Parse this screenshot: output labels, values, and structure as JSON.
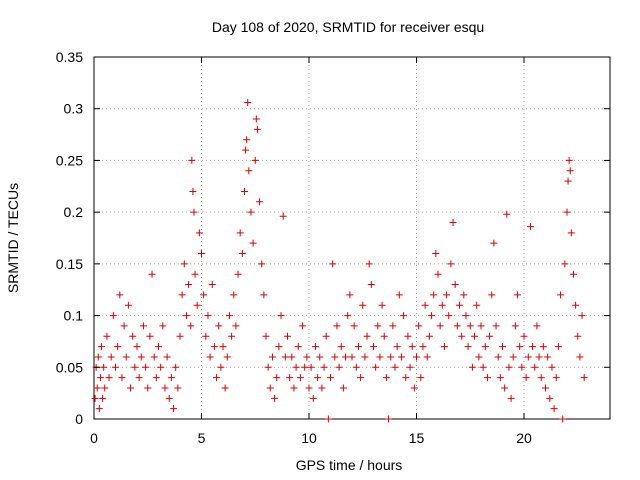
{
  "chart_data": {
    "type": "scatter",
    "title": "Day 108 of 2020, SRMTID for receiver esqu",
    "xlabel": "GPS time / hours",
    "ylabel": "SRMTID / TECUs",
    "xlim": [
      0,
      24
    ],
    "ylim": [
      0,
      0.35
    ],
    "xticks": [
      0,
      5,
      10,
      15,
      20
    ],
    "xtick_labels": [
      "0",
      "5",
      "10",
      "15",
      "20"
    ],
    "yticks": [
      0,
      0.05,
      0.1,
      0.15,
      0.2,
      0.25,
      0.3,
      0.35
    ],
    "ytick_labels": [
      "0",
      "0.05",
      "0.1",
      "0.15",
      "0.2",
      "0.25",
      "0.3",
      "0.35"
    ],
    "grid": true,
    "marker": "plus",
    "color": "#e00000",
    "series": [
      {
        "name": "SRMTID",
        "points": [
          [
            0.05,
            0.02
          ],
          [
            0.1,
            0.05
          ],
          [
            0.15,
            0.03
          ],
          [
            0.2,
            0.06
          ],
          [
            0.25,
            0.01
          ],
          [
            0.3,
            0.04
          ],
          [
            0.35,
            0.07
          ],
          [
            0.4,
            0.02
          ],
          [
            0.45,
            0.05
          ],
          [
            0.5,
            0.03
          ],
          [
            0.6,
            0.08
          ],
          [
            0.7,
            0.04
          ],
          [
            0.8,
            0.06
          ],
          [
            0.9,
            0.1
          ],
          [
            1.0,
            0.05
          ],
          [
            1.1,
            0.07
          ],
          [
            1.2,
            0.12
          ],
          [
            1.3,
            0.04
          ],
          [
            1.4,
            0.09
          ],
          [
            1.5,
            0.06
          ],
          [
            1.6,
            0.11
          ],
          [
            1.7,
            0.03
          ],
          [
            1.8,
            0.08
          ],
          [
            1.9,
            0.05
          ],
          [
            2.0,
            0.07
          ],
          [
            2.1,
            0.04
          ],
          [
            2.2,
            0.06
          ],
          [
            2.3,
            0.09
          ],
          [
            2.4,
            0.05
          ],
          [
            2.5,
            0.03
          ],
          [
            2.6,
            0.08
          ],
          [
            2.7,
            0.14
          ],
          [
            2.8,
            0.06
          ],
          [
            2.9,
            0.04
          ],
          [
            3.0,
            0.07
          ],
          [
            3.1,
            0.05
          ],
          [
            3.2,
            0.09
          ],
          [
            3.3,
            0.03
          ],
          [
            3.4,
            0.06
          ],
          [
            3.5,
            0.02
          ],
          [
            3.6,
            0.04
          ],
          [
            3.7,
            0.01
          ],
          [
            3.8,
            0.05
          ],
          [
            3.9,
            0.03
          ],
          [
            4.0,
            0.08
          ],
          [
            4.1,
            0.12
          ],
          [
            4.2,
            0.15
          ],
          [
            4.3,
            0.1
          ],
          [
            4.4,
            0.13
          ],
          [
            4.5,
            0.09
          ],
          [
            4.55,
            0.25
          ],
          [
            4.6,
            0.22
          ],
          [
            4.65,
            0.2
          ],
          [
            4.7,
            0.14
          ],
          [
            4.8,
            0.11
          ],
          [
            4.9,
            0.18
          ],
          [
            5.0,
            0.16
          ],
          [
            5.1,
            0.12
          ],
          [
            5.2,
            0.08
          ],
          [
            5.3,
            0.1
          ],
          [
            5.4,
            0.06
          ],
          [
            5.5,
            0.13
          ],
          [
            5.6,
            0.07
          ],
          [
            5.7,
            0.04
          ],
          [
            5.8,
            0.09
          ],
          [
            5.9,
            0.05
          ],
          [
            6.0,
            0.07
          ],
          [
            6.1,
            0.03
          ],
          [
            6.2,
            0.06
          ],
          [
            6.3,
            0.1
          ],
          [
            6.4,
            0.08
          ],
          [
            6.5,
            0.12
          ],
          [
            6.6,
            0.09
          ],
          [
            6.7,
            0.14
          ],
          [
            6.8,
            0.18
          ],
          [
            6.9,
            0.16
          ],
          [
            7.0,
            0.22
          ],
          [
            7.05,
            0.26
          ],
          [
            7.1,
            0.27
          ],
          [
            7.15,
            0.306
          ],
          [
            7.2,
            0.24
          ],
          [
            7.3,
            0.2
          ],
          [
            7.4,
            0.17
          ],
          [
            7.5,
            0.25
          ],
          [
            7.55,
            0.29
          ],
          [
            7.6,
            0.28
          ],
          [
            7.7,
            0.21
          ],
          [
            7.8,
            0.15
          ],
          [
            7.9,
            0.12
          ],
          [
            8.0,
            0.08
          ],
          [
            8.1,
            0.05
          ],
          [
            8.2,
            0.03
          ],
          [
            8.3,
            0.06
          ],
          [
            8.4,
            0.02
          ],
          [
            8.5,
            0.04
          ],
          [
            8.6,
            0.07
          ],
          [
            8.7,
            0.1
          ],
          [
            8.8,
            0.196
          ],
          [
            8.9,
            0.06
          ],
          [
            9.0,
            0.08
          ],
          [
            9.1,
            0.04
          ],
          [
            9.2,
            0.06
          ],
          [
            9.3,
            0.03
          ],
          [
            9.4,
            0.05
          ],
          [
            9.5,
            0.07
          ],
          [
            9.6,
            0.04
          ],
          [
            9.7,
            0.09
          ],
          [
            9.8,
            0.05
          ],
          [
            9.9,
            0.06
          ],
          [
            10.0,
            0.03
          ],
          [
            10.1,
            0.05
          ],
          [
            10.2,
            0.02
          ],
          [
            10.3,
            0.07
          ],
          [
            10.4,
            0.04
          ],
          [
            10.5,
            0.06
          ],
          [
            10.6,
            0.03
          ],
          [
            10.7,
            0.05
          ],
          [
            10.8,
            0.08
          ],
          [
            10.9,
            0.0
          ],
          [
            11.0,
            0.04
          ],
          [
            11.1,
            0.15
          ],
          [
            11.2,
            0.06
          ],
          [
            11.3,
            0.09
          ],
          [
            11.4,
            0.05
          ],
          [
            11.5,
            0.07
          ],
          [
            11.6,
            0.03
          ],
          [
            11.7,
            0.06
          ],
          [
            11.8,
            0.1
          ],
          [
            11.9,
            0.12
          ],
          [
            12.0,
            0.06
          ],
          [
            12.1,
            0.09
          ],
          [
            12.2,
            0.05
          ],
          [
            12.3,
            0.07
          ],
          [
            12.4,
            0.04
          ],
          [
            12.5,
            0.11
          ],
          [
            12.6,
            0.06
          ],
          [
            12.7,
            0.08
          ],
          [
            12.8,
            0.15
          ],
          [
            12.9,
            0.13
          ],
          [
            13.0,
            0.07
          ],
          [
            13.1,
            0.05
          ],
          [
            13.2,
            0.09
          ],
          [
            13.3,
            0.06
          ],
          [
            13.4,
            0.11
          ],
          [
            13.5,
            0.08
          ],
          [
            13.6,
            0.04
          ],
          [
            13.7,
            0.0
          ],
          [
            13.8,
            0.06
          ],
          [
            13.9,
            0.09
          ],
          [
            14.0,
            0.05
          ],
          [
            14.1,
            0.07
          ],
          [
            14.2,
            0.12
          ],
          [
            14.3,
            0.06
          ],
          [
            14.4,
            0.1
          ],
          [
            14.5,
            0.04
          ],
          [
            14.6,
            0.08
          ],
          [
            14.7,
            0.05
          ],
          [
            14.8,
            0.07
          ],
          [
            14.9,
            0.03
          ],
          [
            15.0,
            0.06
          ],
          [
            15.1,
            0.09
          ],
          [
            15.2,
            0.04
          ],
          [
            15.3,
            0.07
          ],
          [
            15.4,
            0.11
          ],
          [
            15.5,
            0.06
          ],
          [
            15.6,
            0.08
          ],
          [
            15.7,
            0.1
          ],
          [
            15.8,
            0.12
          ],
          [
            15.9,
            0.16
          ],
          [
            16.0,
            0.14
          ],
          [
            16.1,
            0.09
          ],
          [
            16.2,
            0.11
          ],
          [
            16.3,
            0.07
          ],
          [
            16.4,
            0.12
          ],
          [
            16.5,
            0.1
          ],
          [
            16.6,
            0.15
          ],
          [
            16.7,
            0.19
          ],
          [
            16.8,
            0.13
          ],
          [
            16.9,
            0.09
          ],
          [
            17.0,
            0.11
          ],
          [
            17.1,
            0.08
          ],
          [
            17.2,
            0.12
          ],
          [
            17.3,
            0.1
          ],
          [
            17.4,
            0.07
          ],
          [
            17.5,
            0.09
          ],
          [
            17.6,
            0.05
          ],
          [
            17.7,
            0.08
          ],
          [
            17.8,
            0.11
          ],
          [
            17.9,
            0.06
          ],
          [
            18.0,
            0.09
          ],
          [
            18.1,
            0.05
          ],
          [
            18.2,
            0.07
          ],
          [
            18.3,
            0.04
          ],
          [
            18.4,
            0.08
          ],
          [
            18.5,
            0.12
          ],
          [
            18.6,
            0.17
          ],
          [
            18.7,
            0.09
          ],
          [
            18.8,
            0.06
          ],
          [
            18.9,
            0.04
          ],
          [
            19.0,
            0.07
          ],
          [
            19.1,
            0.03
          ],
          [
            19.2,
            0.198
          ],
          [
            19.3,
            0.05
          ],
          [
            19.4,
            0.02
          ],
          [
            19.5,
            0.06
          ],
          [
            19.6,
            0.09
          ],
          [
            19.7,
            0.12
          ],
          [
            19.8,
            0.07
          ],
          [
            19.9,
            0.05
          ],
          [
            20.0,
            0.08
          ],
          [
            20.1,
            0.04
          ],
          [
            20.2,
            0.06
          ],
          [
            20.3,
            0.186
          ],
          [
            20.4,
            0.07
          ],
          [
            20.5,
            0.05
          ],
          [
            20.6,
            0.09
          ],
          [
            20.7,
            0.06
          ],
          [
            20.8,
            0.04
          ],
          [
            20.9,
            0.07
          ],
          [
            21.0,
            0.03
          ],
          [
            21.1,
            0.06
          ],
          [
            21.2,
            0.02
          ],
          [
            21.3,
            0.05
          ],
          [
            21.4,
            0.01
          ],
          [
            21.5,
            0.04
          ],
          [
            21.6,
            0.07
          ],
          [
            21.7,
            0.12
          ],
          [
            21.8,
            0.0
          ],
          [
            21.9,
            0.15
          ],
          [
            22.0,
            0.2
          ],
          [
            22.05,
            0.23
          ],
          [
            22.1,
            0.25
          ],
          [
            22.15,
            0.24
          ],
          [
            22.2,
            0.18
          ],
          [
            22.3,
            0.14
          ],
          [
            22.4,
            0.11
          ],
          [
            22.5,
            0.08
          ],
          [
            22.6,
            0.06
          ],
          [
            22.7,
            0.1
          ],
          [
            22.8,
            0.04
          ]
        ]
      }
    ]
  }
}
